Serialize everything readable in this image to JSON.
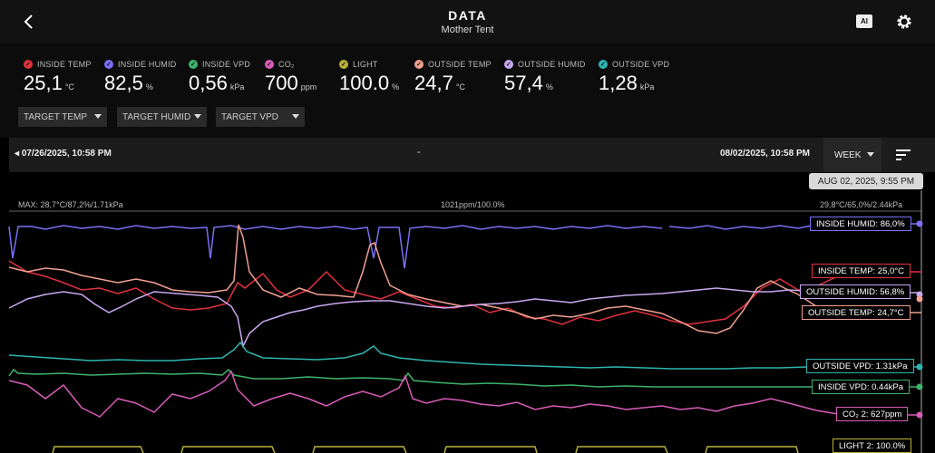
{
  "header": {
    "title": "DATA",
    "subtitle": "Mother Tent",
    "ai_label": "AI"
  },
  "metrics": [
    {
      "label": "INSIDE TEMP",
      "value": "25,1",
      "unit": "°C",
      "color": "#e0323d",
      "icon": "check-icon"
    },
    {
      "label": "INSIDE HUMID",
      "value": "82,5",
      "unit": "%",
      "color": "#7b6ff5",
      "icon": "check-icon"
    },
    {
      "label": "INSIDE VPD",
      "value": "0,56",
      "unit": "kPa",
      "color": "#3db36a",
      "icon": "check-icon"
    },
    {
      "label": "CO₂",
      "value": "700",
      "unit": "ppm",
      "color": "#d85cb8",
      "icon": "check-icon"
    },
    {
      "label": "LIGHT",
      "value": "100.0",
      "unit": "%",
      "color": "#b8b03a",
      "icon": "check-icon"
    },
    {
      "label": "OUTSIDE TEMP",
      "value": "24,7",
      "unit": "°C",
      "color": "#f0a090",
      "icon": "check-icon"
    },
    {
      "label": "OUTSIDE HUMID",
      "value": "57,4",
      "unit": "%",
      "color": "#c9a8f0",
      "icon": "check-icon"
    },
    {
      "label": "OUTSIDE VPD",
      "value": "1,28",
      "unit": "kPa",
      "color": "#2fb5b0",
      "icon": "check-icon"
    }
  ],
  "targets": [
    "TARGET TEMP",
    "TARGET HUMID",
    "TARGET VPD"
  ],
  "range": {
    "start": "07/26/2025, 10:58 PM",
    "separator": "-",
    "end": "08/02/2025, 10:58 PM",
    "period": "WEEK"
  },
  "chart": {
    "tooltip": "AUG 02, 2025, 9:55 PM",
    "stat_left": "MAX: 28,7°C/87,2%/1.71kPa",
    "stat_mid": "1021ppm/100.0%",
    "stat_right": "29,8°C/65,0%/2.44kPa",
    "tags": {
      "inside_humid": "INSIDE HUMID: 86,0%",
      "inside_temp": "INSIDE TEMP: 25,0°C",
      "outside_humid": "OUTSIDE HUMID: 56,8%",
      "outside_temp": "OUTSIDE TEMP: 24,7°C",
      "outside_vpd": "OUTSIDE VPD: 1.31kPa",
      "inside_vpd": "INSIDE VPD: 0.44kPa",
      "co2": "CO₂ 2: 627ppm",
      "light": "LIGHT 2: 100.0%"
    }
  }
}
